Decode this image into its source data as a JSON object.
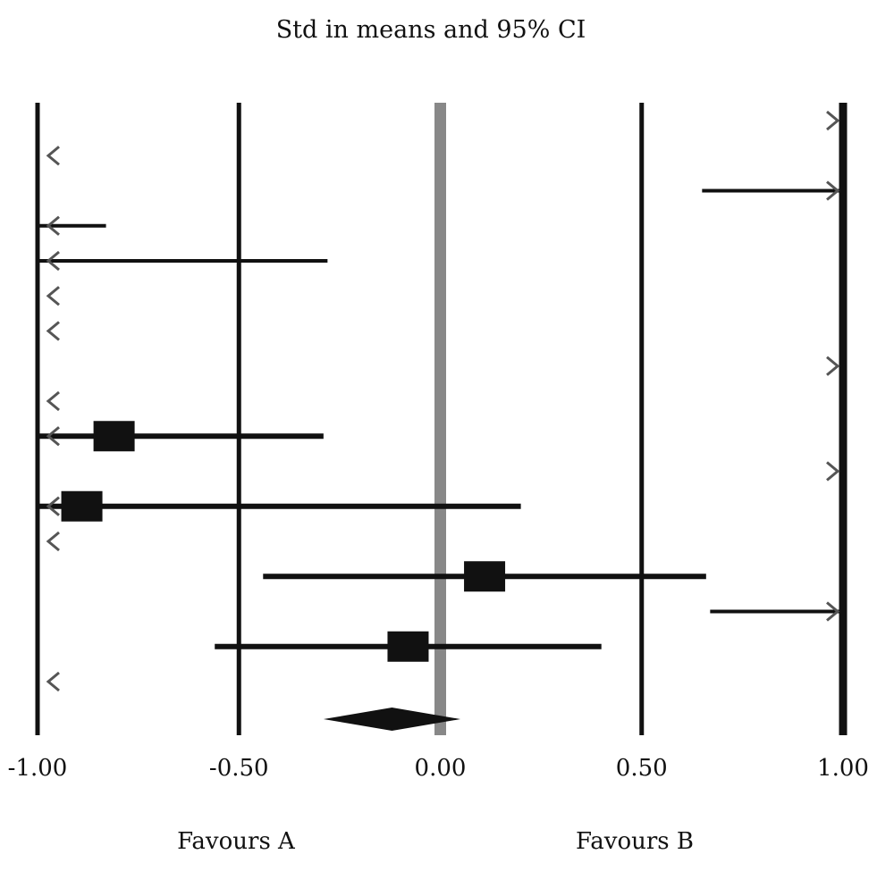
{
  "chart_data": {
    "type": "forest",
    "title": "Std in means and 95% CI",
    "xlim": [
      -1.0,
      1.0
    ],
    "x_ticks": [
      {
        "value": -1.0,
        "label": "-1.00"
      },
      {
        "value": -0.5,
        "label": "-0.50"
      },
      {
        "value": 0.0,
        "label": "0.00"
      },
      {
        "value": 0.5,
        "label": "0.50"
      },
      {
        "value": 1.0,
        "label": "1.00"
      }
    ],
    "favours": {
      "left": "Favours A",
      "right": "Favours B"
    },
    "studies": [
      {
        "lower": 1.0,
        "upper": 1.0,
        "estimate": null,
        "arrow_left": false,
        "arrow_right": true
      },
      {
        "lower": -1.0,
        "upper": -1.0,
        "estimate": null,
        "arrow_left": true,
        "arrow_right": false
      },
      {
        "lower": 0.65,
        "upper": 1.0,
        "estimate": null,
        "arrow_left": false,
        "arrow_right": true
      },
      {
        "lower": -1.0,
        "upper": -0.83,
        "estimate": null,
        "arrow_left": true,
        "arrow_right": false
      },
      {
        "lower": -1.0,
        "upper": -0.28,
        "estimate": null,
        "arrow_left": true,
        "arrow_right": false
      },
      {
        "lower": -1.0,
        "upper": -1.0,
        "estimate": null,
        "arrow_left": true,
        "arrow_right": false
      },
      {
        "lower": -1.0,
        "upper": -1.0,
        "estimate": null,
        "arrow_left": true,
        "arrow_right": false
      },
      {
        "lower": 1.0,
        "upper": 1.0,
        "estimate": null,
        "arrow_left": false,
        "arrow_right": true
      },
      {
        "lower": -1.0,
        "upper": -1.0,
        "estimate": null,
        "arrow_left": true,
        "arrow_right": false
      },
      {
        "lower": -1.0,
        "upper": -0.29,
        "estimate": -0.81,
        "arrow_left": true,
        "arrow_right": false
      },
      {
        "lower": 1.0,
        "upper": 1.0,
        "estimate": null,
        "arrow_left": false,
        "arrow_right": true
      },
      {
        "lower": -1.0,
        "upper": 0.2,
        "estimate": -0.89,
        "arrow_left": true,
        "arrow_right": false
      },
      {
        "lower": -1.0,
        "upper": -1.0,
        "estimate": null,
        "arrow_left": true,
        "arrow_right": false
      },
      {
        "lower": -0.44,
        "upper": 0.66,
        "estimate": 0.11,
        "arrow_left": false,
        "arrow_right": false
      },
      {
        "lower": 0.67,
        "upper": 1.0,
        "estimate": null,
        "arrow_left": false,
        "arrow_right": true
      },
      {
        "lower": -0.56,
        "upper": 0.4,
        "estimate": -0.08,
        "arrow_left": false,
        "arrow_right": false
      },
      {
        "lower": -1.0,
        "upper": -1.0,
        "estimate": null,
        "arrow_left": true,
        "arrow_right": false
      }
    ],
    "summary": {
      "lower": -0.29,
      "estimate": -0.12,
      "upper": 0.05
    },
    "colors": {
      "lines": "#111111",
      "zero_line": "#888888",
      "text": "#111111"
    }
  }
}
